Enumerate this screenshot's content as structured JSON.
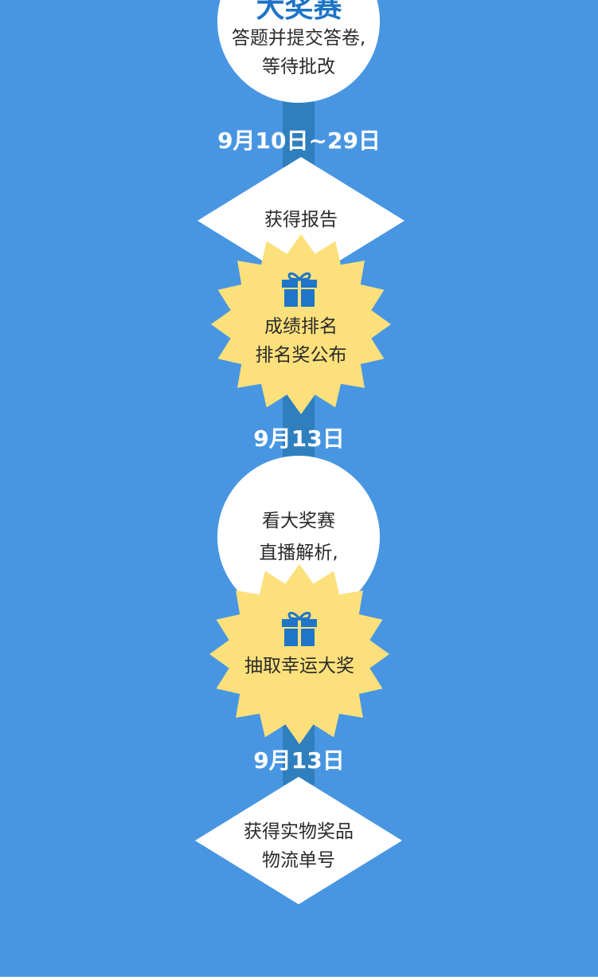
{
  "steps": [
    {
      "title": "大奖赛",
      "line1": "答题并提交答卷,",
      "line2": "等待批改"
    },
    {
      "date": "9月10日~29日",
      "label": "获得报告"
    },
    {
      "line1": "成绩排名",
      "line2": "排名奖公布",
      "icon": "gift-icon"
    },
    {
      "date": "9月13日",
      "line1": "看大奖赛",
      "line2": "直播解析,"
    },
    {
      "label": "抽取幸运大奖",
      "icon": "gift-icon"
    },
    {
      "date": "9月13日",
      "line1": "获得实物奖品",
      "line2": "物流单号"
    }
  ],
  "colors": {
    "background": "#4896E2",
    "spine": "#2F7FBE",
    "burst": "#FCE07B",
    "accent": "#1E74C5",
    "shape": "#ffffff"
  }
}
